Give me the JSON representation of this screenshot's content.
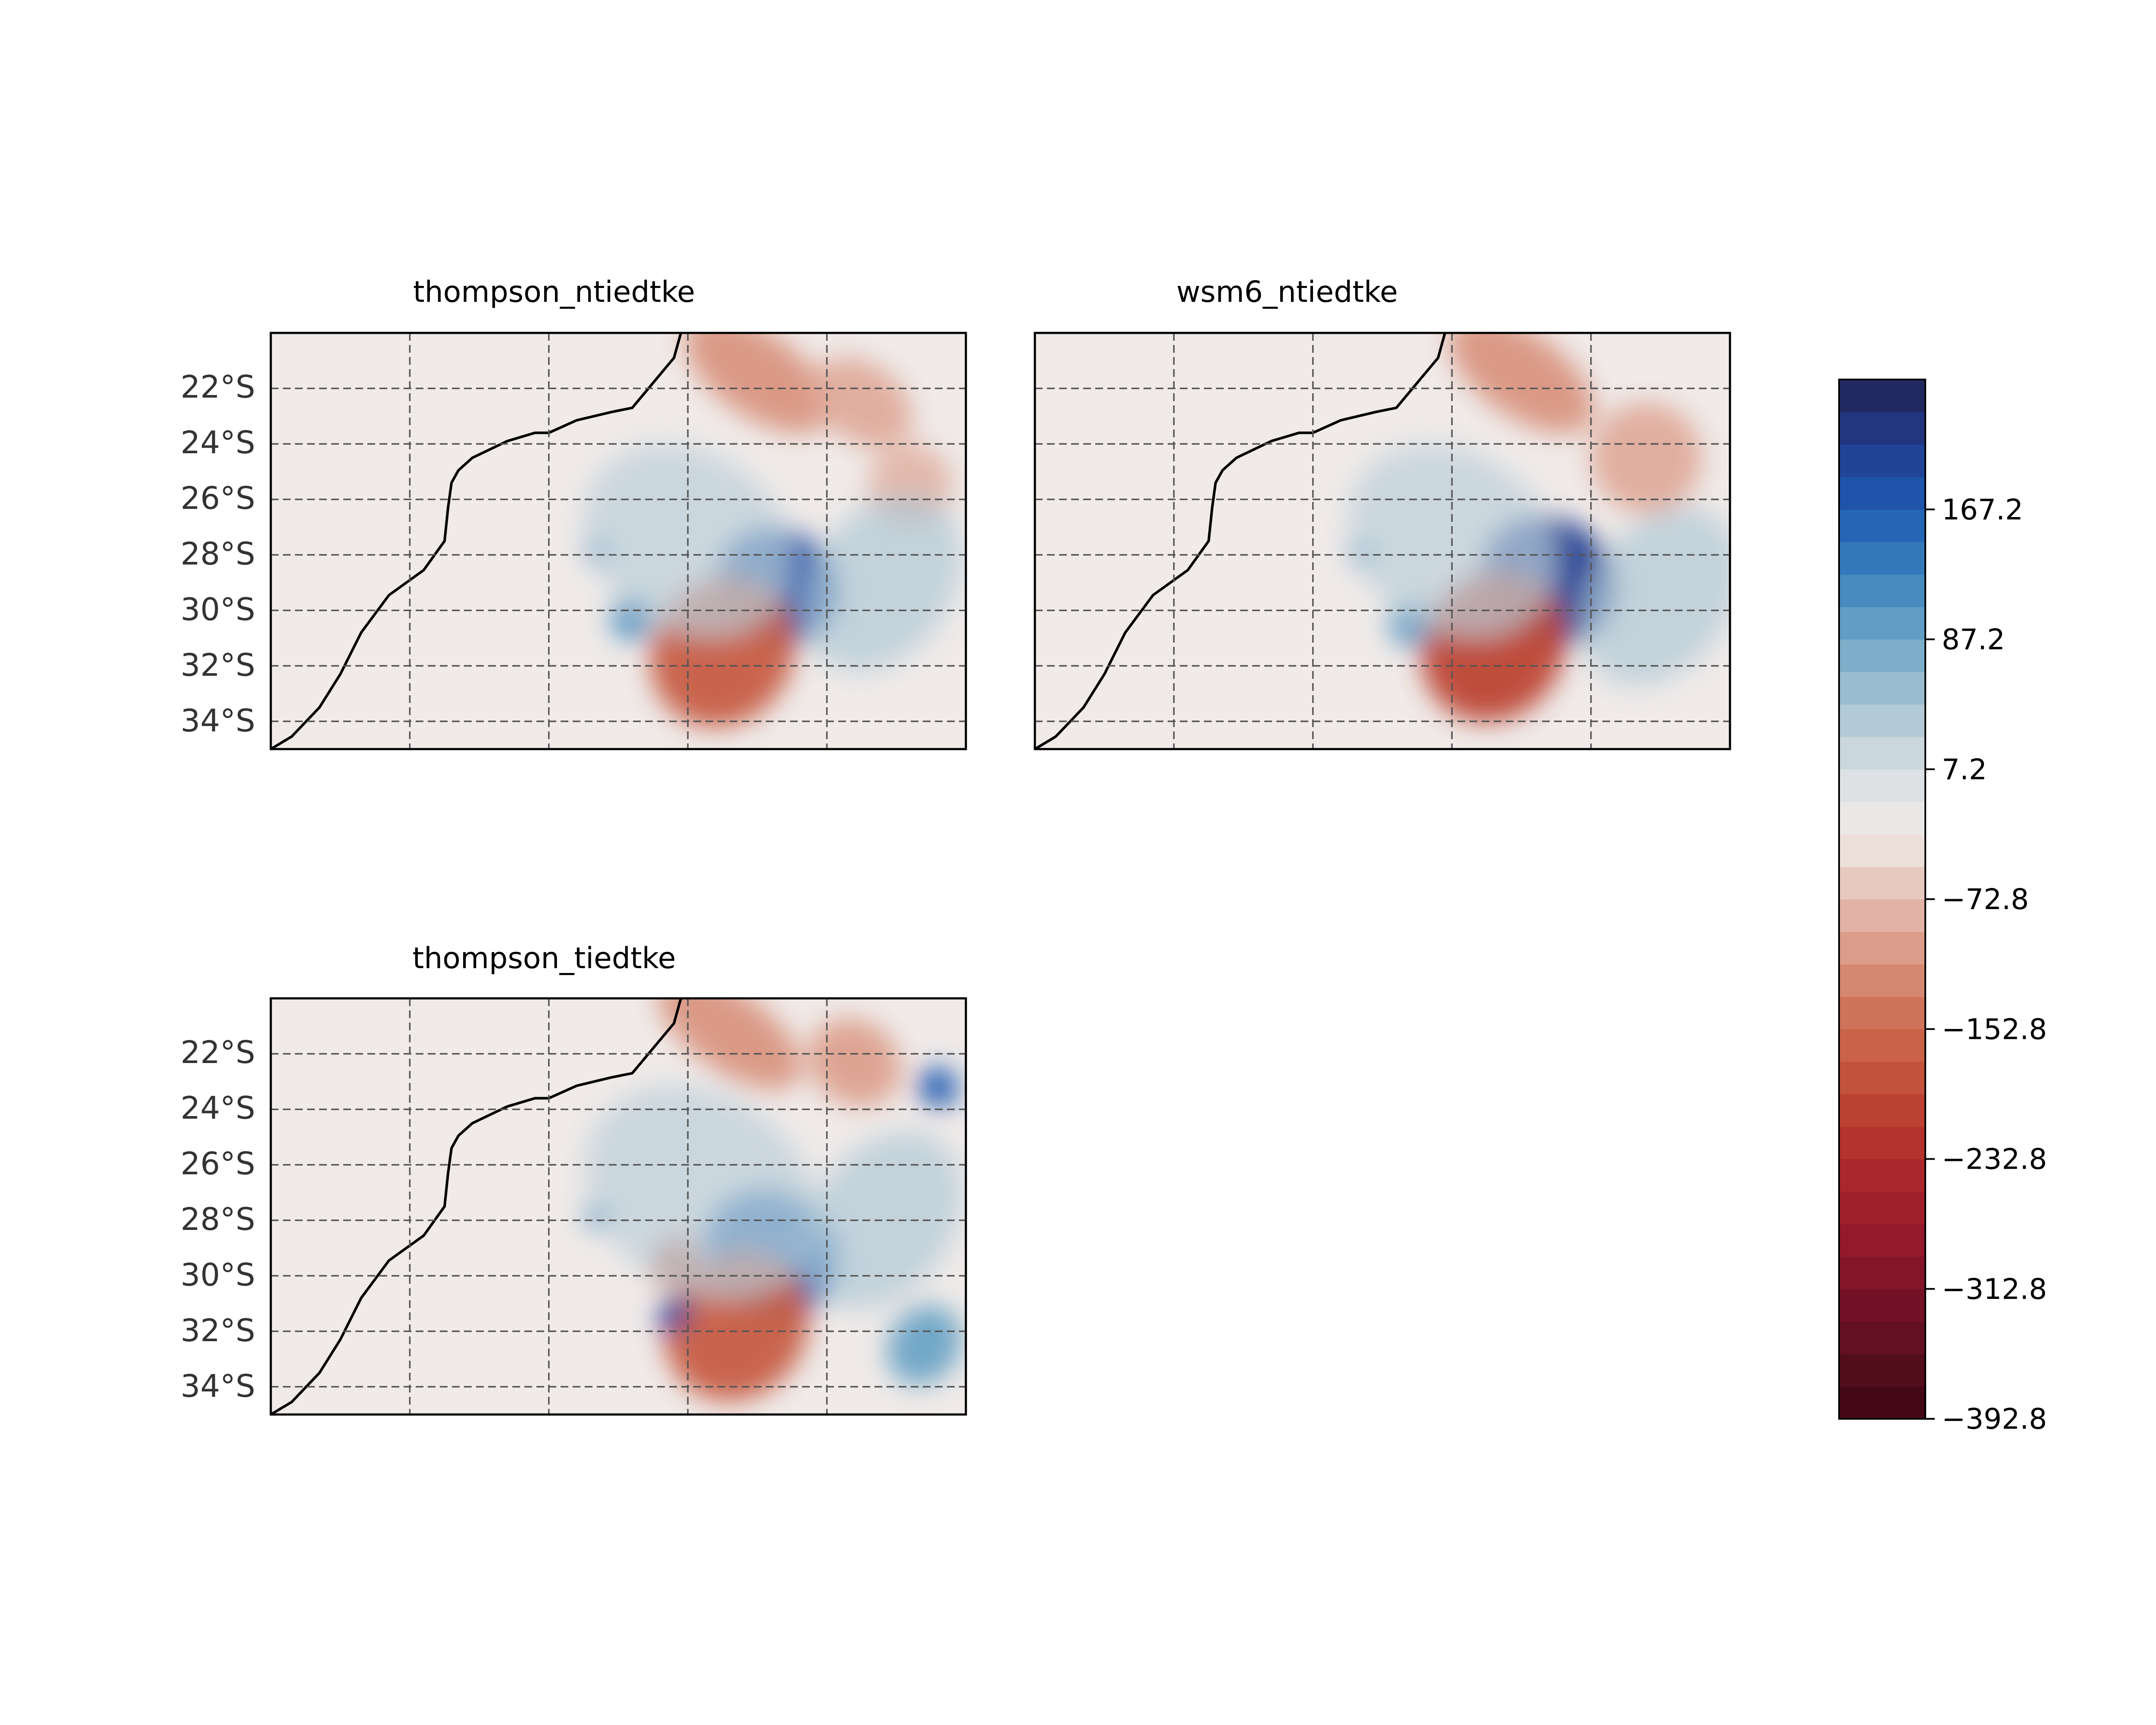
{
  "figure": {
    "panels": [
      {
        "title": "thompson_ntiedtke",
        "lat_labels": [
          "22°S",
          "24°S",
          "26°S",
          "28°S",
          "30°S",
          "32°S",
          "34°S"
        ],
        "lat_range": [
          -35.0,
          -20.0
        ],
        "anomalies": [
          {
            "lon": 0.73,
            "lat": -29.1,
            "rx": 0.09,
            "ry": 2.0,
            "value": 180
          },
          {
            "lon": 0.65,
            "lat": -31.5,
            "rx": 0.1,
            "ry": 2.8,
            "value": -170
          },
          {
            "lon": 0.7,
            "lat": -21.5,
            "rx": 0.12,
            "ry": 1.5,
            "value": -110
          },
          {
            "lon": 0.85,
            "lat": -22.5,
            "rx": 0.08,
            "ry": 1.4,
            "value": -90
          },
          {
            "lon": 0.92,
            "lat": -25.5,
            "rx": 0.06,
            "ry": 1.5,
            "value": -80
          },
          {
            "lon": 0.52,
            "lat": -30.3,
            "rx": 0.03,
            "ry": 0.8,
            "value": 110
          },
          {
            "lon": 0.47,
            "lat": -27.9,
            "rx": 0.02,
            "ry": 0.4,
            "value": 120
          },
          {
            "lon": 0.6,
            "lat": -27.5,
            "rx": 0.16,
            "ry": 3.2,
            "value": 30
          },
          {
            "lon": 0.88,
            "lat": -29.0,
            "rx": 0.1,
            "ry": 3.5,
            "value": 40
          }
        ]
      },
      {
        "title": "wsm6_ntiedtke",
        "lat_labels": [
          "22°S",
          "24°S",
          "26°S",
          "28°S",
          "30°S",
          "32°S",
          "34°S"
        ],
        "lat_range": [
          -35.0,
          -20.0
        ],
        "anomalies": [
          {
            "lon": 0.74,
            "lat": -28.9,
            "rx": 0.1,
            "ry": 2.2,
            "value": 200
          },
          {
            "lon": 0.66,
            "lat": -31.3,
            "rx": 0.1,
            "ry": 2.8,
            "value": -200
          },
          {
            "lon": 0.7,
            "lat": -21.5,
            "rx": 0.12,
            "ry": 1.5,
            "value": -110
          },
          {
            "lon": 0.88,
            "lat": -24.5,
            "rx": 0.08,
            "ry": 2.0,
            "value": -90
          },
          {
            "lon": 0.54,
            "lat": -30.5,
            "rx": 0.03,
            "ry": 0.8,
            "value": 100
          },
          {
            "lon": 0.47,
            "lat": -28.0,
            "rx": 0.02,
            "ry": 0.4,
            "value": 110
          },
          {
            "lon": 0.6,
            "lat": -27.5,
            "rx": 0.16,
            "ry": 3.2,
            "value": 30
          },
          {
            "lon": 0.9,
            "lat": -29.5,
            "rx": 0.1,
            "ry": 3.5,
            "value": 40
          }
        ]
      },
      {
        "title": "thompson_tiedtke",
        "lat_labels": [
          "22°S",
          "24°S",
          "26°S",
          "28°S",
          "30°S",
          "32°S",
          "34°S"
        ],
        "lat_range": [
          -35.0,
          -20.0
        ],
        "anomalies": [
          {
            "lon": 0.72,
            "lat": -29.2,
            "rx": 0.1,
            "ry": 2.2,
            "value": 160
          },
          {
            "lon": 0.67,
            "lat": -31.8,
            "rx": 0.1,
            "ry": 2.8,
            "value": -170
          },
          {
            "lon": 0.66,
            "lat": -21.2,
            "rx": 0.12,
            "ry": 1.4,
            "value": -110
          },
          {
            "lon": 0.84,
            "lat": -22.3,
            "rx": 0.07,
            "ry": 1.5,
            "value": -100
          },
          {
            "lon": 0.96,
            "lat": -23.2,
            "rx": 0.03,
            "ry": 0.7,
            "value": 170
          },
          {
            "lon": 0.58,
            "lat": -29.5,
            "rx": 0.03,
            "ry": 1.0,
            "value": -160
          },
          {
            "lon": 0.58,
            "lat": -31.4,
            "rx": 0.02,
            "ry": 0.7,
            "value": 190
          },
          {
            "lon": 0.47,
            "lat": -27.9,
            "rx": 0.02,
            "ry": 0.4,
            "value": 110
          },
          {
            "lon": 0.94,
            "lat": -32.5,
            "rx": 0.05,
            "ry": 1.5,
            "value": 90
          },
          {
            "lon": 0.62,
            "lat": -27.0,
            "rx": 0.18,
            "ry": 3.5,
            "value": 30
          },
          {
            "lon": 0.88,
            "lat": -28.0,
            "rx": 0.1,
            "ry": 3.5,
            "value": 40
          }
        ]
      }
    ],
    "colorbar": {
      "tick_labels": [
        "167.2",
        "87.2",
        "7.2",
        "−72.8",
        "−152.8",
        "−232.8",
        "−312.8",
        "−392.8"
      ],
      "tick_values": [
        167.2,
        87.2,
        7.2,
        -72.8,
        -152.8,
        -232.8,
        -312.8,
        -392.8
      ],
      "range": [
        -392.8,
        247.2
      ],
      "levels": 32,
      "colors": [
        "#3d0711",
        "#5a1020",
        "#7d1128",
        "#9a1c2c",
        "#af2b2a",
        "#bf4a36",
        "#cc6a4e",
        "#d8927c",
        "#e4bdb2",
        "#f0ebe9",
        "#d6dde1",
        "#a7c5d2",
        "#6ea6c6",
        "#3a82bd",
        "#1c5cb2",
        "#233a8f",
        "#1f2550"
      ]
    }
  }
}
